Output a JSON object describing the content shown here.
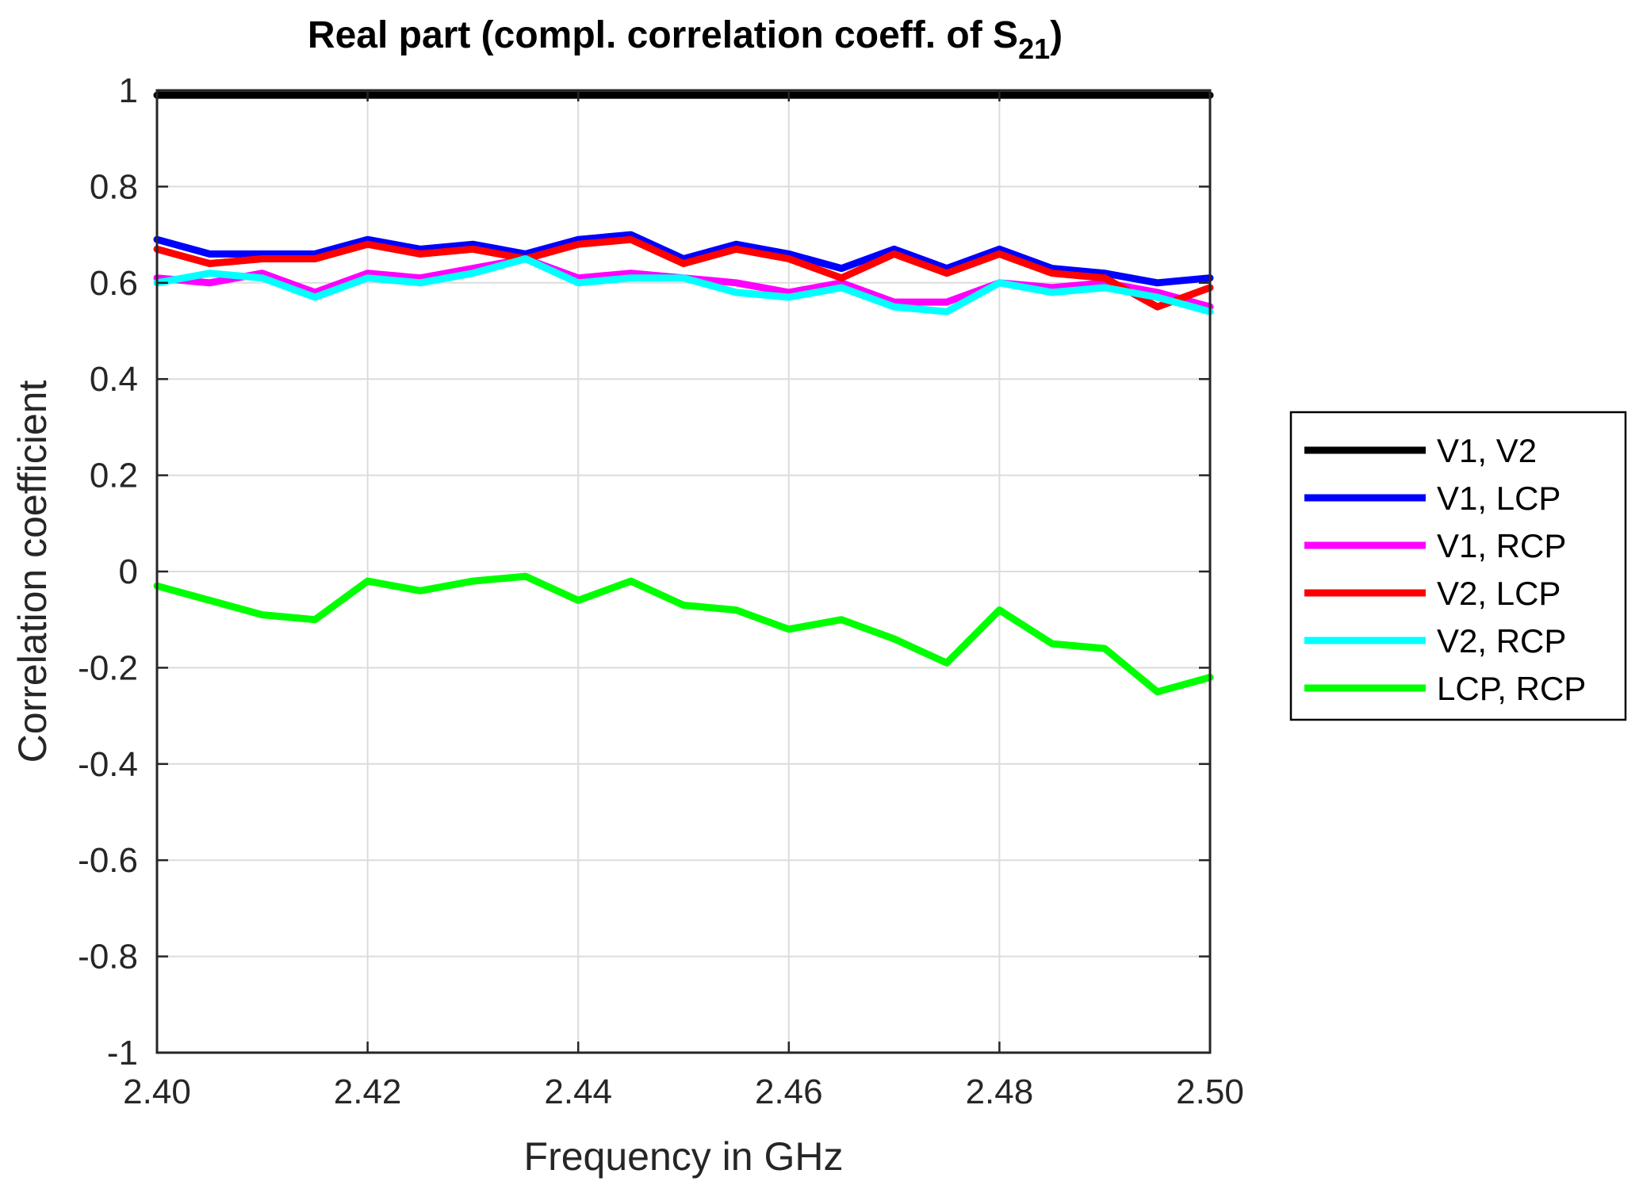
{
  "chart_data": {
    "type": "line",
    "title": "Real part (compl. correlation coeff. of S",
    "title_subscript": "21",
    "title_suffix": ")",
    "xlabel": "Frequency in GHz",
    "ylabel": "Correlation coefficient",
    "xlim": [
      2.4,
      2.5
    ],
    "ylim": [
      -1,
      1
    ],
    "xticks": [
      2.4,
      2.42,
      2.44,
      2.46,
      2.48,
      2.5
    ],
    "xtick_labels": [
      "2.40",
      "2.42",
      "2.44",
      "2.46",
      "2.48",
      "2.50"
    ],
    "yticks": [
      1,
      0.8,
      0.6,
      0.4,
      0.2,
      0,
      -0.2,
      -0.4,
      -0.6,
      -0.8,
      -1
    ],
    "ytick_labels": [
      "1",
      "0.8",
      "0.6",
      "0.4",
      "0.2",
      "0",
      "-0.2",
      "-0.4",
      "-0.6",
      "-0.8",
      "-1"
    ],
    "grid": true,
    "legend_position": "outside-right",
    "x": [
      2.4,
      2.405,
      2.41,
      2.415,
      2.42,
      2.425,
      2.43,
      2.435,
      2.44,
      2.445,
      2.45,
      2.455,
      2.46,
      2.465,
      2.47,
      2.475,
      2.48,
      2.485,
      2.49,
      2.495,
      2.5
    ],
    "series": [
      {
        "name": "V1, V2",
        "color": "#000000",
        "values": [
          0.99,
          0.99,
          0.99,
          0.99,
          0.99,
          0.99,
          0.99,
          0.99,
          0.99,
          0.99,
          0.99,
          0.99,
          0.99,
          0.99,
          0.99,
          0.99,
          0.99,
          0.99,
          0.99,
          0.99,
          0.99
        ]
      },
      {
        "name": "V1, LCP",
        "color": "#0000ff",
        "values": [
          0.69,
          0.66,
          0.66,
          0.66,
          0.69,
          0.67,
          0.68,
          0.66,
          0.69,
          0.7,
          0.65,
          0.68,
          0.66,
          0.63,
          0.67,
          0.63,
          0.67,
          0.63,
          0.62,
          0.6,
          0.61
        ]
      },
      {
        "name": "V1, RCP",
        "color": "#ff00ff",
        "values": [
          0.61,
          0.6,
          0.62,
          0.58,
          0.62,
          0.61,
          0.63,
          0.65,
          0.61,
          0.62,
          0.61,
          0.6,
          0.58,
          0.6,
          0.56,
          0.56,
          0.6,
          0.59,
          0.6,
          0.58,
          0.55
        ]
      },
      {
        "name": "V2, LCP",
        "color": "#ff0000",
        "values": [
          0.67,
          0.64,
          0.65,
          0.65,
          0.68,
          0.66,
          0.67,
          0.65,
          0.68,
          0.69,
          0.64,
          0.67,
          0.65,
          0.61,
          0.66,
          0.62,
          0.66,
          0.62,
          0.61,
          0.55,
          0.59
        ]
      },
      {
        "name": "V2, RCP",
        "color": "#00ffff",
        "values": [
          0.6,
          0.62,
          0.61,
          0.57,
          0.61,
          0.6,
          0.62,
          0.65,
          0.6,
          0.61,
          0.61,
          0.58,
          0.57,
          0.59,
          0.55,
          0.54,
          0.6,
          0.58,
          0.59,
          0.57,
          0.54
        ]
      },
      {
        "name": "LCP, RCP",
        "color": "#00ff00",
        "values": [
          -0.03,
          -0.06,
          -0.09,
          -0.1,
          -0.02,
          -0.04,
          -0.02,
          -0.01,
          -0.06,
          -0.02,
          -0.07,
          -0.08,
          -0.12,
          -0.1,
          -0.14,
          -0.19,
          -0.08,
          -0.15,
          -0.16,
          -0.25,
          -0.22
        ]
      }
    ]
  }
}
